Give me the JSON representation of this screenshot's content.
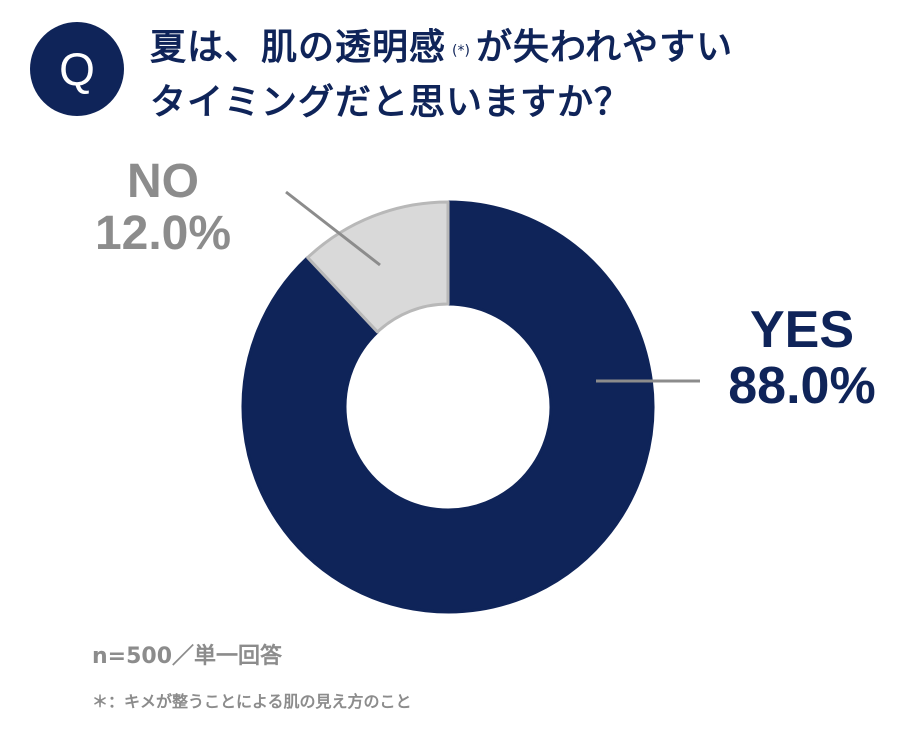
{
  "header": {
    "badge": "Q",
    "title_line1_a": "夏は、肌の透明感",
    "title_mark": "(*)",
    "title_line1_b": "が失われやすい",
    "title_line2": "タイミングだと思いますか？"
  },
  "chart_data": {
    "type": "pie",
    "donut": true,
    "categories": [
      "YES",
      "NO"
    ],
    "values": [
      88.0,
      12.0
    ],
    "value_labels": [
      "88.0%",
      "12.0%"
    ],
    "colors": [
      "#0f2459",
      "#d9d9d9"
    ],
    "title": "",
    "legend": "none"
  },
  "footer": {
    "sample": "n=500／単一回答",
    "note": "＊：キメが整うことによる肌の見え方のこと"
  }
}
